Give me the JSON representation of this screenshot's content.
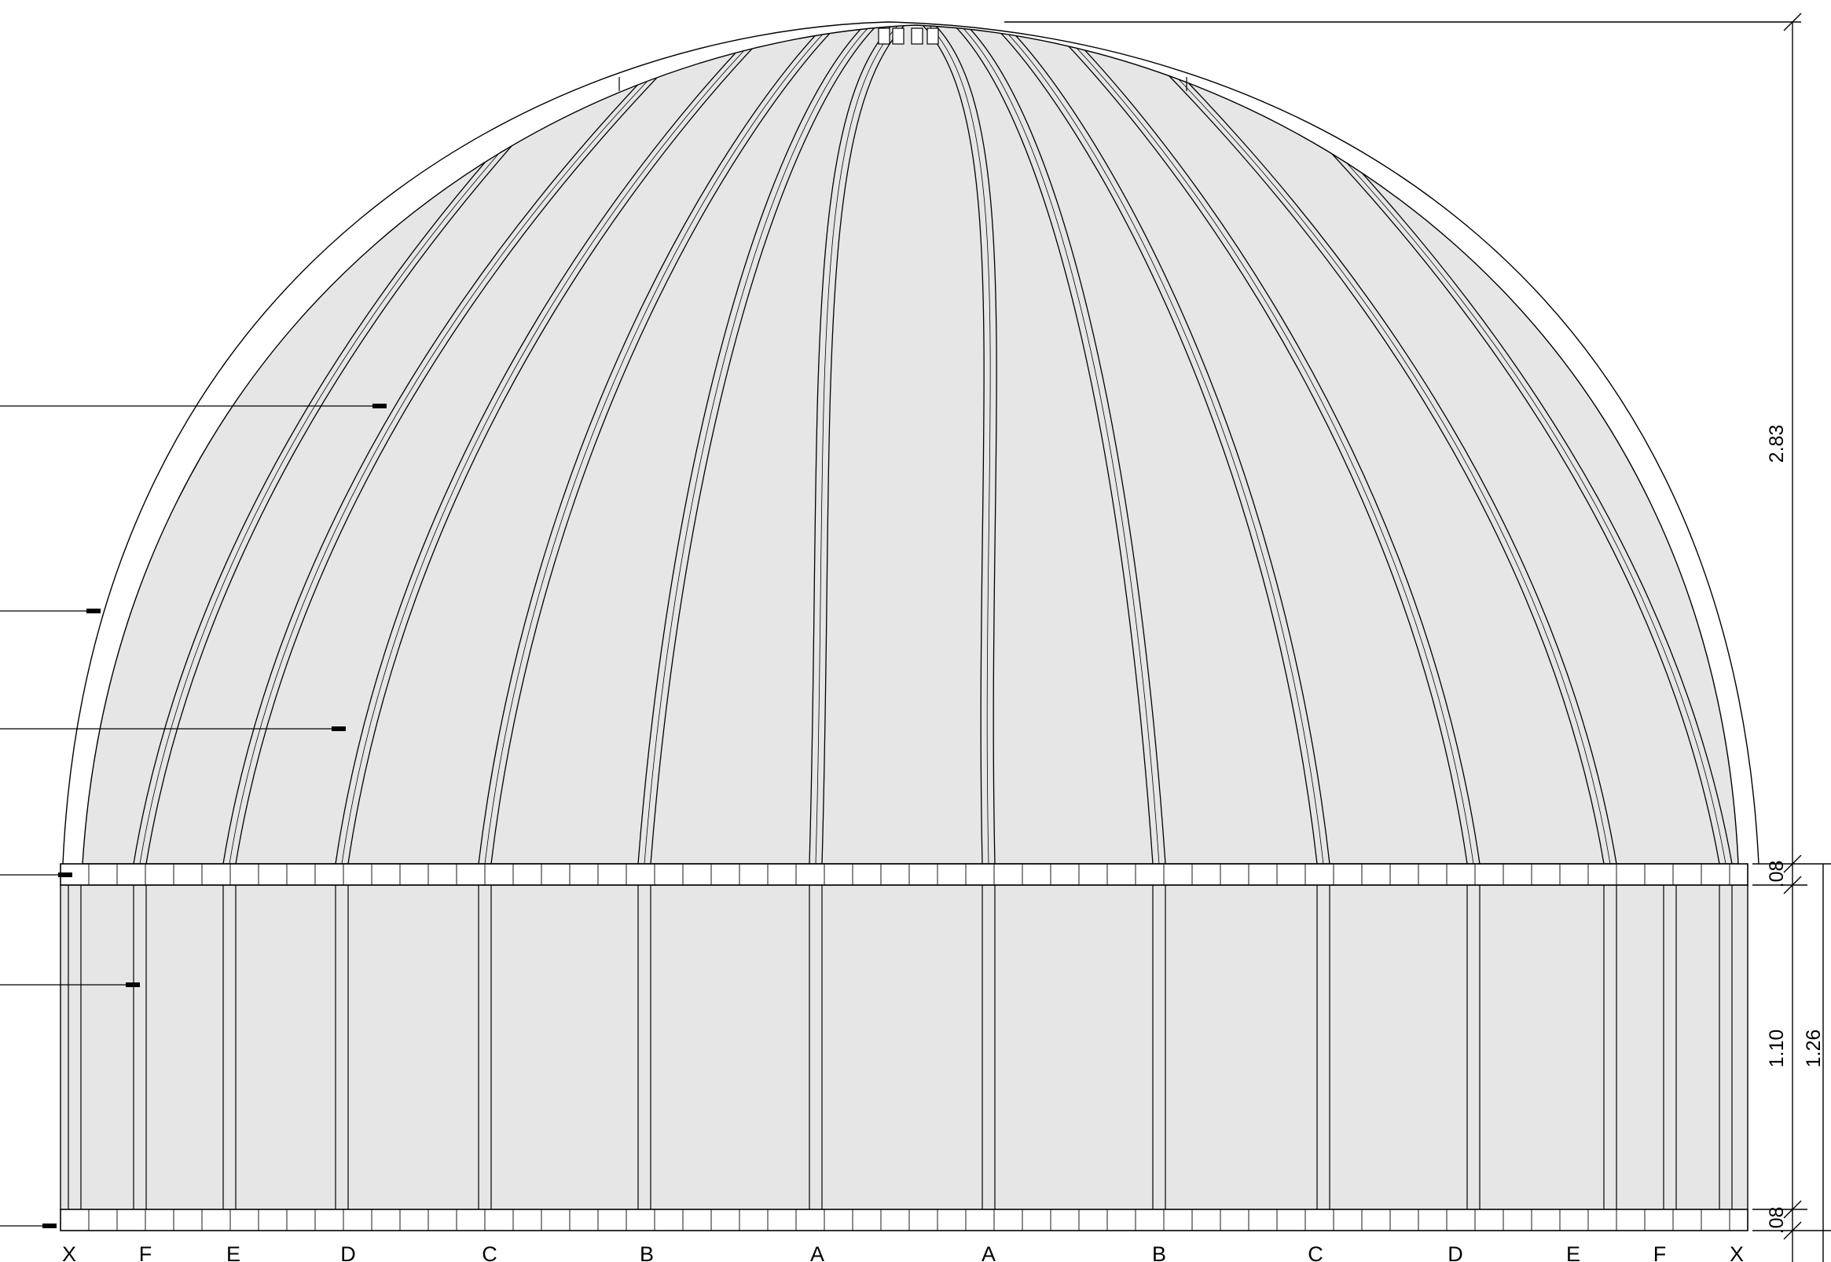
{
  "drawing": {
    "type": "architectural-elevation",
    "subject": "ribbed dome on cylindrical drum"
  },
  "colors": {
    "line": "#000000",
    "panel_fill": "#e6e6e6",
    "background": "#ffffff"
  },
  "grid_labels": [
    "X",
    "F",
    "E",
    "D",
    "C",
    "B",
    "A",
    "A",
    "B",
    "C",
    "D",
    "E",
    "F",
    "X"
  ],
  "dimensions": {
    "dome_height": "2.83",
    "upper_ring": ".08",
    "drum_height": "1.10",
    "lower_ring": ".08",
    "total_drum": "1.26"
  },
  "leaders": {
    "count": 6
  }
}
